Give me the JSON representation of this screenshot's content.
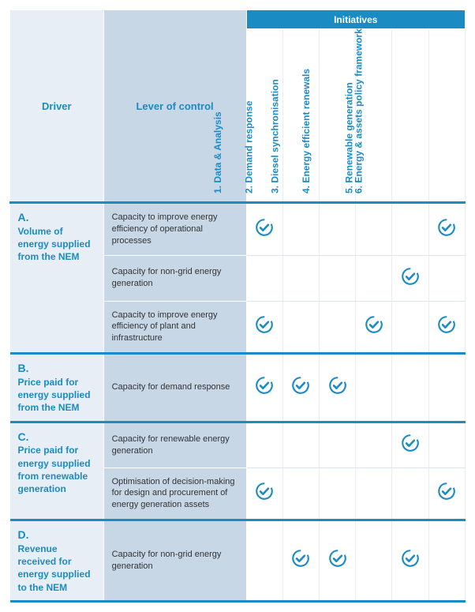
{
  "colors": {
    "brand": "#1b8bc4",
    "driver_bg": "#e8eef5",
    "lever_bg": "#c7d7e6",
    "text_dark": "#333333",
    "white": "#ffffff",
    "cell_border": "#d9e4ee"
  },
  "header": {
    "initiatives_label": "Initiatives",
    "driver_label": "Driver",
    "lever_label": "Lever of control"
  },
  "initiatives": [
    "1. Data & Analysis",
    "2. Demand response",
    "3. Diesel synchronisation",
    "4. Energy efficient renewals",
    "5. Renewable generation",
    "6. Energy & assets policy framework"
  ],
  "drivers": [
    {
      "letter": "A.",
      "title": "Volume of energy supplied from the NEM",
      "levers": [
        {
          "text": "Capacity to improve energy efficiency of operational processes",
          "checks": [
            true,
            false,
            false,
            false,
            false,
            true
          ]
        },
        {
          "text": "Capacity for non-grid energy generation",
          "checks": [
            false,
            false,
            false,
            false,
            true,
            false
          ]
        },
        {
          "text": "Capacity to improve energy efficiency of plant and infrastructure",
          "checks": [
            true,
            false,
            false,
            true,
            false,
            true
          ]
        }
      ]
    },
    {
      "letter": "B.",
      "title": "Price paid for energy supplied from the NEM",
      "levers": [
        {
          "text": "Capacity for demand response",
          "checks": [
            true,
            true,
            true,
            false,
            false,
            false
          ]
        }
      ]
    },
    {
      "letter": "C.",
      "title": "Price paid for energy supplied from renewable generation",
      "levers": [
        {
          "text": "Capacity for renewable energy generation",
          "checks": [
            false,
            false,
            false,
            false,
            true,
            false
          ]
        },
        {
          "text": "Optimisation of decision-making for design and procurement of energy generation assets",
          "checks": [
            true,
            false,
            false,
            false,
            false,
            true
          ]
        }
      ]
    },
    {
      "letter": "D.",
      "title": "Revenue received for energy supplied to the NEM",
      "levers": [
        {
          "text": "Capacity for non-grid energy generation",
          "checks": [
            false,
            true,
            true,
            false,
            true,
            false
          ]
        }
      ]
    }
  ]
}
